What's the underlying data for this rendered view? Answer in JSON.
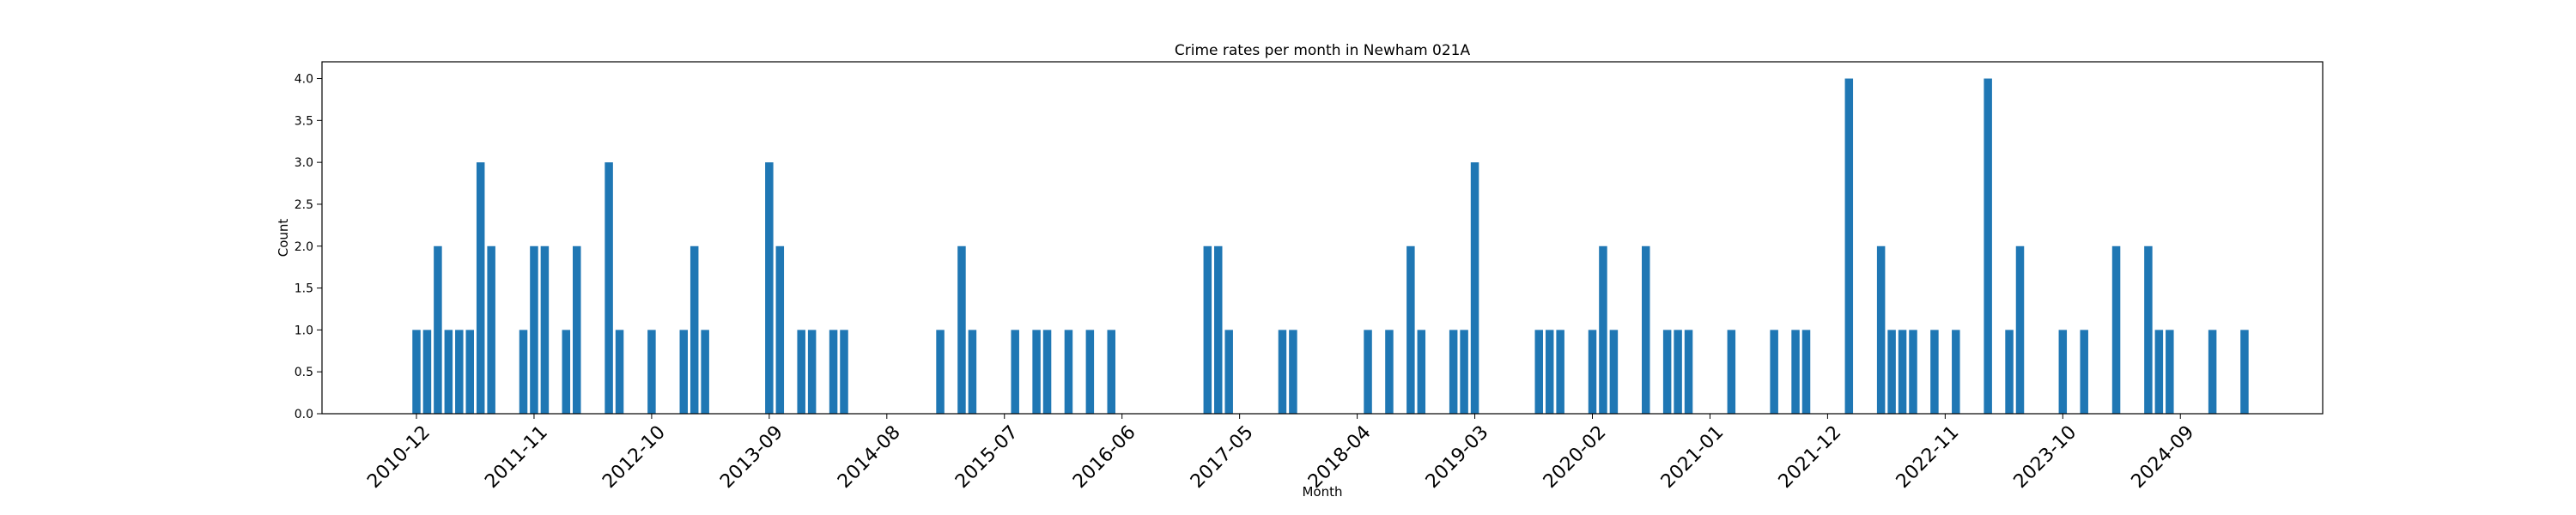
{
  "chart_data": {
    "type": "bar",
    "title": "Crime rates per month in Newham 021A",
    "xlabel": "Month",
    "ylabel": "Count",
    "ylim": [
      0,
      4.2
    ],
    "yticks": [
      "0.0",
      "0.5",
      "1.0",
      "1.5",
      "2.0",
      "2.5",
      "3.0",
      "3.5",
      "4.0"
    ],
    "xticks": [
      "2010-12",
      "2011-11",
      "2012-10",
      "2013-09",
      "2014-08",
      "2015-07",
      "2016-06",
      "2017-05",
      "2018-04",
      "2019-03",
      "2020-02",
      "2021-01",
      "2021-12",
      "2022-11",
      "2023-10",
      "2024-09"
    ],
    "grid": false,
    "color": "#1f77b4",
    "categories": [
      "2010-12",
      "2011-01",
      "2011-02",
      "2011-03",
      "2011-04",
      "2011-05",
      "2011-06",
      "2011-07",
      "2011-10",
      "2011-11",
      "2011-12",
      "2012-02",
      "2012-03",
      "2012-06",
      "2012-07",
      "2012-10",
      "2013-01",
      "2013-02",
      "2013-03",
      "2013-09",
      "2013-10",
      "2013-12",
      "2014-01",
      "2014-03",
      "2014-04",
      "2015-01",
      "2015-03",
      "2015-04",
      "2015-08",
      "2015-10",
      "2015-11",
      "2016-01",
      "2016-03",
      "2016-05",
      "2017-02",
      "2017-03",
      "2017-04",
      "2017-09",
      "2017-10",
      "2018-05",
      "2018-07",
      "2018-09",
      "2018-10",
      "2019-01",
      "2019-02",
      "2019-03",
      "2019-09",
      "2019-10",
      "2019-11",
      "2020-02",
      "2020-03",
      "2020-04",
      "2020-07",
      "2020-09",
      "2020-10",
      "2020-11",
      "2021-03",
      "2021-07",
      "2021-09",
      "2021-10",
      "2022-02",
      "2022-05",
      "2022-06",
      "2022-07",
      "2022-08",
      "2022-10",
      "2022-12",
      "2023-03",
      "2023-05",
      "2023-06",
      "2023-10",
      "2023-12",
      "2024-03",
      "2024-06",
      "2024-07",
      "2024-08",
      "2024-12",
      "2025-03"
    ],
    "values": [
      1,
      1,
      2,
      1,
      1,
      1,
      3,
      2,
      1,
      2,
      2,
      1,
      2,
      3,
      1,
      1,
      1,
      2,
      1,
      3,
      2,
      1,
      1,
      1,
      1,
      1,
      2,
      1,
      1,
      1,
      1,
      1,
      1,
      1,
      2,
      2,
      1,
      1,
      1,
      1,
      1,
      2,
      1,
      1,
      1,
      3,
      1,
      1,
      1,
      1,
      2,
      1,
      2,
      1,
      1,
      1,
      1,
      1,
      1,
      1,
      4,
      2,
      1,
      1,
      1,
      1,
      1,
      4,
      1,
      2,
      1,
      1,
      2,
      2,
      1,
      1,
      1,
      1
    ]
  }
}
